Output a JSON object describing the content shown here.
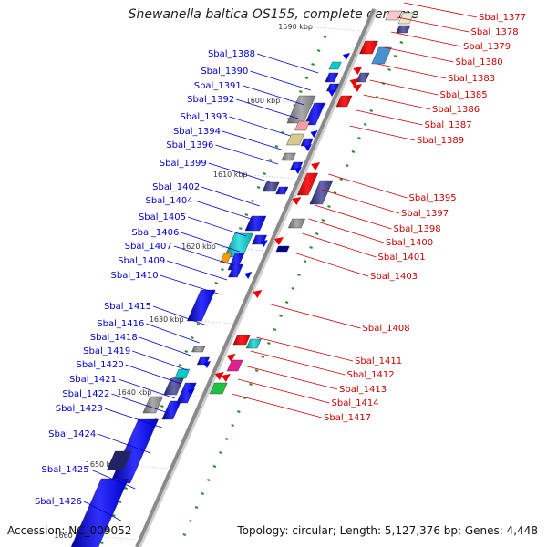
{
  "title": "Shewanella baltica OS155, complete genome",
  "footer": {
    "accession": "Accession: NC_009052",
    "summary": "Topology: circular; Length: 5,127,376 bp; Genes: 4,448"
  },
  "colors": {
    "left_label": "#0000cc",
    "right_label": "#cc0000",
    "backbone": "#8a8a8a",
    "tick": "#2e8b2e"
  },
  "kbp_labels": [
    "1590 kbp",
    "1600 kbp",
    "1610 kbp",
    "1620 kbp",
    "1630 kbp",
    "1640 kbp",
    "1650 kbp",
    "1660 kbp"
  ],
  "left_genes": [
    "Sbal_1388",
    "Sbal_1390",
    "Sbal_1391",
    "Sbal_1392",
    "Sbal_1393",
    "Sbal_1394",
    "Sbal_1396",
    "Sbal_1399",
    "Sbal_1402",
    "Sbal_1404",
    "Sbal_1405",
    "Sbal_1406",
    "Sbal_1407",
    "Sbal_1409",
    "Sbal_1410",
    "Sbal_1415",
    "Sbal_1416",
    "Sbal_1418",
    "Sbal_1419",
    "Sbal_1420",
    "Sbal_1421",
    "Sbal_1422",
    "Sbal_1423",
    "Sbal_1424",
    "Sbal_1425",
    "Sbal_1426"
  ],
  "right_genes": [
    "Sbal_1377",
    "Sbal_1378",
    "Sbal_1379",
    "Sbal_1380",
    "Sbal_1383",
    "Sbal_1385",
    "Sbal_1386",
    "Sbal_1387",
    "Sbal_1389",
    "Sbal_1395",
    "Sbal_1397",
    "Sbal_1398",
    "Sbal_1400",
    "Sbal_1401",
    "Sbal_1403",
    "Sbal_1408",
    "Sbal_1411",
    "Sbal_1412",
    "Sbal_1413",
    "Sbal_1414",
    "Sbal_1417"
  ]
}
